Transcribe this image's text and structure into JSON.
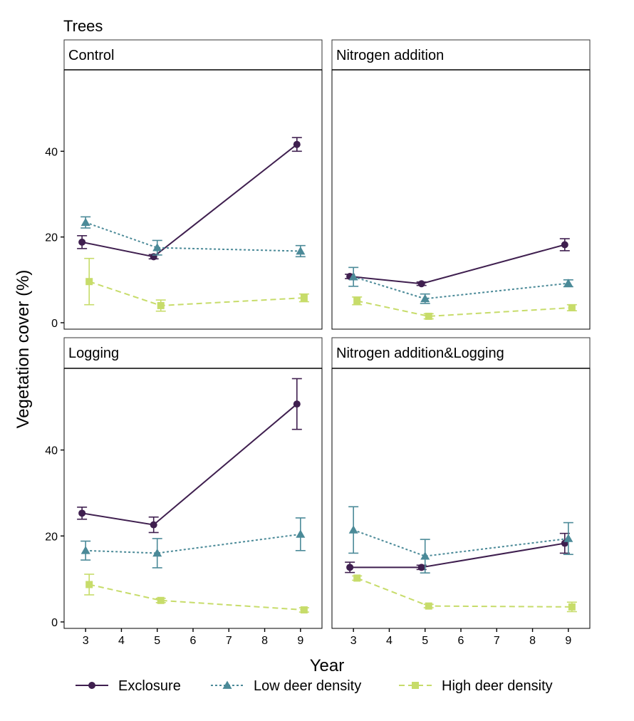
{
  "chart_data": {
    "type": "line",
    "title": "Trees",
    "xlabel": "Year",
    "ylabel": "Vegetation cover (%)",
    "x_ticks": [
      3,
      4,
      5,
      6,
      7,
      8,
      9
    ],
    "y_ticks": [
      0,
      20,
      40
    ],
    "xlim": [
      2.4,
      9.6
    ],
    "ylim": [
      -1.5,
      59
    ],
    "grid": false,
    "legend_position": "bottom",
    "series_styles": [
      {
        "name": "Exclosure",
        "color": "#3f1f4f",
        "marker": "circle",
        "dash": "solid"
      },
      {
        "name": "Low deer density",
        "color": "#4b8a98",
        "marker": "triangle",
        "dash": "dotted"
      },
      {
        "name": "High deer density",
        "color": "#c7dc6a",
        "marker": "square",
        "dash": "dashed"
      }
    ],
    "panels": [
      {
        "title": "Control",
        "series": [
          {
            "name": "Exclosure",
            "x": [
              3,
              5,
              9
            ],
            "y": [
              18.8,
              15.4,
              41.6
            ],
            "err": [
              1.5,
              0.5,
              1.6
            ]
          },
          {
            "name": "Low deer density",
            "x": [
              3,
              5,
              9
            ],
            "y": [
              23.4,
              17.5,
              16.7
            ],
            "err": [
              1.3,
              1.7,
              1.3
            ]
          },
          {
            "name": "High deer density",
            "x": [
              3,
              5,
              9
            ],
            "y": [
              9.6,
              4.0,
              5.8
            ],
            "err": [
              5.4,
              1.3,
              0.9
            ]
          }
        ]
      },
      {
        "title": "Nitrogen addition",
        "series": [
          {
            "name": "Exclosure",
            "x": [
              3,
              5,
              9
            ],
            "y": [
              10.8,
              9.1,
              18.2
            ],
            "err": [
              0.5,
              0.4,
              1.4
            ]
          },
          {
            "name": "Low deer density",
            "x": [
              3,
              5,
              9
            ],
            "y": [
              10.7,
              5.6,
              9.2
            ],
            "err": [
              2.2,
              1.1,
              0.8
            ]
          },
          {
            "name": "High deer density",
            "x": [
              3,
              5,
              9
            ],
            "y": [
              5.1,
              1.5,
              3.5
            ],
            "err": [
              0.9,
              0.6,
              0.7
            ]
          }
        ]
      },
      {
        "title": "Logging",
        "series": [
          {
            "name": "Exclosure",
            "x": [
              3,
              5,
              9
            ],
            "y": [
              25.3,
              22.6,
              50.7
            ],
            "err": [
              1.4,
              1.8,
              5.9
            ]
          },
          {
            "name": "Low deer density",
            "x": [
              3,
              5,
              9
            ],
            "y": [
              16.6,
              16.0,
              20.4
            ],
            "err": [
              2.2,
              3.4,
              3.8
            ]
          },
          {
            "name": "High deer density",
            "x": [
              3,
              5,
              9
            ],
            "y": [
              8.7,
              5.0,
              2.8
            ],
            "err": [
              2.4,
              0.5,
              0.5
            ]
          }
        ]
      },
      {
        "title": "Nitrogen addition&Logging",
        "series": [
          {
            "name": "Exclosure",
            "x": [
              3,
              5,
              9
            ],
            "y": [
              12.7,
              12.7,
              18.3
            ],
            "err": [
              1.2,
              0.5,
              2.3
            ]
          },
          {
            "name": "Low deer density",
            "x": [
              3,
              5,
              9
            ],
            "y": [
              21.4,
              15.3,
              19.4
            ],
            "err": [
              5.4,
              3.9,
              3.7
            ]
          },
          {
            "name": "High deer density",
            "x": [
              3,
              5,
              9
            ],
            "y": [
              10.2,
              3.7,
              3.5
            ],
            "err": [
              0.5,
              0.4,
              1.1
            ]
          }
        ]
      }
    ]
  }
}
